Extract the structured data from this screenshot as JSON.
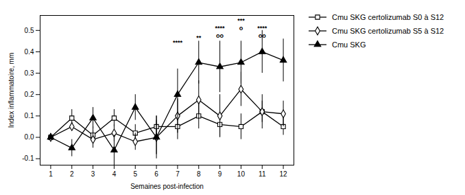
{
  "chart_data": {
    "type": "line",
    "xlabel": "Semaines post-infection",
    "ylabel": "Index inflammatoire, mm",
    "x": [
      1,
      2,
      3,
      4,
      5,
      6,
      7,
      8,
      9,
      10,
      11,
      12
    ],
    "xlim": [
      0.5,
      12.5
    ],
    "xticks": [
      1,
      2,
      3,
      4,
      5,
      6,
      7,
      8,
      9,
      10,
      11,
      12
    ],
    "ylim": [
      -0.13,
      0.57
    ],
    "yticks": [
      -0.1,
      {
        "value": 0.0,
        "label": "0.0"
      },
      0.1,
      0.2,
      0.3,
      0.4,
      0.5
    ],
    "legend": "right",
    "series": [
      {
        "name": "Cmu SKG certolizumab S0 à S12",
        "color": "#000000",
        "marker": "open_square",
        "values": [
          0.0,
          0.09,
          0.01,
          0.09,
          0.02,
          0.05,
          0.05,
          0.1,
          0.06,
          0.05,
          0.12,
          0.05
        ],
        "errors": [
          0.01,
          0.04,
          0.04,
          0.04,
          0.04,
          0.05,
          0.06,
          0.06,
          0.06,
          0.06,
          0.05,
          0.04
        ]
      },
      {
        "name": "Cmu SKG certolizumab S5 à S12",
        "color": "#000000",
        "marker": "open_diamond",
        "values": [
          0.0,
          0.05,
          -0.01,
          0.02,
          -0.02,
          0.0,
          0.1,
          0.175,
          0.1,
          0.225,
          0.12,
          0.11
        ],
        "errors": [
          0.01,
          0.02,
          0.04,
          0.04,
          0.04,
          0.08,
          0.08,
          0.09,
          0.1,
          0.08,
          0.08,
          0.06
        ]
      },
      {
        "name": "Cmu SKG",
        "color": "#000000",
        "marker": "triangle",
        "values": [
          0.0,
          -0.05,
          0.09,
          -0.06,
          0.14,
          0.0,
          0.2,
          0.35,
          0.33,
          0.35,
          0.4,
          0.36
        ],
        "errors": [
          0.01,
          0.04,
          0.05,
          0.07,
          0.06,
          0.1,
          0.12,
          0.1,
          0.12,
          0.1,
          0.1,
          0.1
        ]
      }
    ],
    "annotations": [
      {
        "x": 7,
        "y": 0.435,
        "text": "****"
      },
      {
        "x": 8,
        "y": 0.455,
        "text": "**"
      },
      {
        "x": 9,
        "y": 0.5,
        "text": "****"
      },
      {
        "x": 9,
        "y": 0.465,
        "text": "oo"
      },
      {
        "x": 10,
        "y": 0.535,
        "text": "***"
      },
      {
        "x": 10,
        "y": 0.5,
        "text": "o"
      },
      {
        "x": 11,
        "y": 0.5,
        "text": "****"
      },
      {
        "x": 11,
        "y": 0.465,
        "text": "oo"
      }
    ]
  }
}
